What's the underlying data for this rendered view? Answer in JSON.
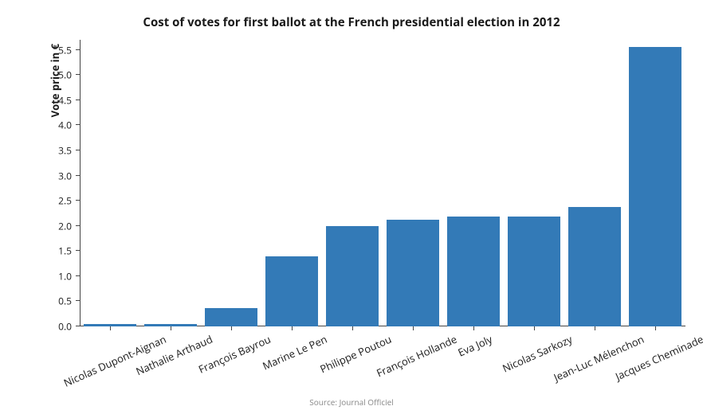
{
  "chart": {
    "type": "bar",
    "title": "Cost of votes for first ballot at the French presidential election in 2012",
    "title_fontsize": 15,
    "title_fontweight": 700,
    "y_axis_label": "Vote price in €",
    "label_fontsize": 13,
    "tick_fontsize": 12,
    "xlabel_fontsize": 13,
    "xlabel_rotation_deg": -24,
    "background_color": "#ffffff",
    "bar_color": "#337ab7",
    "axis_color": "#444444",
    "text_color": "#1a1a1a",
    "ylim": [
      0.0,
      5.7
    ],
    "ytick_step": 0.5,
    "y_ticks": [
      "0.0",
      "0.5",
      "1.0",
      "1.5",
      "2.0",
      "2.5",
      "3.0",
      "3.5",
      "4.0",
      "4.5",
      "5.0",
      "5.5"
    ],
    "bar_width_ratio": 0.86,
    "categories": [
      "Nicolas Dupont-Aignan",
      "Nathalie Arthaud",
      "François Bayrou",
      "Marine Le Pen",
      "Philippe Poutou",
      "François Hollande",
      "Eva Joly",
      "Nicolas Sarkozy",
      "Jean-Luc Mélenchon",
      "Jacques Cheminade"
    ],
    "values": [
      0.04,
      0.05,
      0.36,
      1.4,
      2.0,
      2.12,
      2.19,
      2.19,
      2.38,
      5.55
    ],
    "source_label": "Source: Journal Officiel",
    "source_fontsize": 10,
    "source_color": "#888888"
  }
}
